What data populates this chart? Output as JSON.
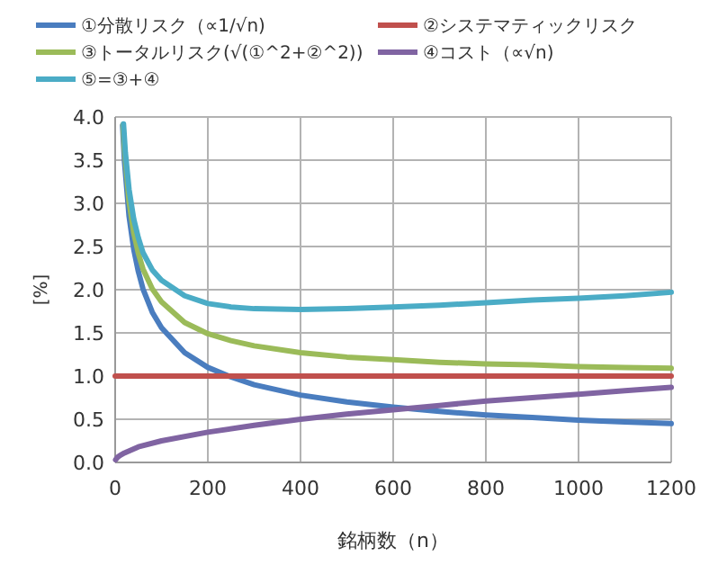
{
  "chart_data": {
    "type": "line",
    "xlabel": "銘柄数（n）",
    "ylabel": "[%]",
    "xlim": [
      0,
      1200
    ],
    "ylim": [
      0,
      4
    ],
    "xticks": [
      0,
      200,
      400,
      600,
      800,
      1000,
      1200
    ],
    "yticks": [
      {
        "value": 0,
        "label": "0.0"
      },
      {
        "value": 0.5,
        "label": "0.5"
      },
      {
        "value": 1,
        "label": "1.0"
      },
      {
        "value": 1.5,
        "label": "1.5"
      },
      {
        "value": 2,
        "label": "2.0"
      },
      {
        "value": 2.5,
        "label": "2.5"
      },
      {
        "value": 3,
        "label": "3.0"
      },
      {
        "value": 3.5,
        "label": "3.5"
      },
      {
        "value": 4,
        "label": "4.0"
      }
    ],
    "grid": true,
    "legend": "top",
    "marker": "none",
    "series": [
      {
        "name": "①分散リスク（∝1/√n)",
        "color": "#4a7dbf",
        "x": [
          16,
          20,
          30,
          40,
          50,
          60,
          80,
          100,
          150,
          200,
          250,
          300,
          400,
          500,
          600,
          700,
          800,
          900,
          1000,
          1100,
          1200
        ],
        "values": [
          3.9,
          3.49,
          2.85,
          2.47,
          2.21,
          2.01,
          1.74,
          1.56,
          1.27,
          1.1,
          0.99,
          0.9,
          0.78,
          0.7,
          0.64,
          0.59,
          0.55,
          0.52,
          0.49,
          0.47,
          0.45
        ]
      },
      {
        "name": "②システマティックリスク",
        "color": "#c0504d",
        "x": [
          0,
          1200
        ],
        "values": [
          1,
          1
        ]
      },
      {
        "name": "③トータルリスク(√(①^2+②^2))",
        "color": "#9bbb59",
        "x": [
          17,
          20,
          30,
          40,
          50,
          60,
          80,
          100,
          150,
          200,
          250,
          300,
          400,
          500,
          600,
          700,
          800,
          900,
          1000,
          1100,
          1200
        ],
        "values": [
          3.91,
          3.63,
          3.02,
          2.66,
          2.42,
          2.24,
          2.01,
          1.86,
          1.62,
          1.49,
          1.41,
          1.35,
          1.27,
          1.22,
          1.19,
          1.16,
          1.14,
          1.13,
          1.11,
          1.1,
          1.09
        ]
      },
      {
        "name": "④コスト（∝√n)",
        "color": "#8064a2",
        "x": [
          1,
          5,
          10,
          20,
          50,
          100,
          200,
          300,
          400,
          500,
          600,
          700,
          800,
          900,
          1000,
          1100,
          1200
        ],
        "values": [
          0.03,
          0.06,
          0.08,
          0.11,
          0.18,
          0.25,
          0.35,
          0.43,
          0.5,
          0.56,
          0.61,
          0.66,
          0.71,
          0.75,
          0.79,
          0.83,
          0.87
        ]
      },
      {
        "name": "⑤=③+④",
        "color": "#4bacc6",
        "x": [
          18,
          22,
          30,
          40,
          50,
          60,
          80,
          100,
          150,
          200,
          250,
          300,
          400,
          500,
          600,
          700,
          800,
          900,
          1000,
          1100,
          1200
        ],
        "values": [
          3.92,
          3.59,
          3.16,
          2.82,
          2.6,
          2.43,
          2.23,
          2.11,
          1.93,
          1.84,
          1.8,
          1.78,
          1.77,
          1.78,
          1.8,
          1.82,
          1.85,
          1.88,
          1.9,
          1.93,
          1.97
        ]
      }
    ]
  }
}
